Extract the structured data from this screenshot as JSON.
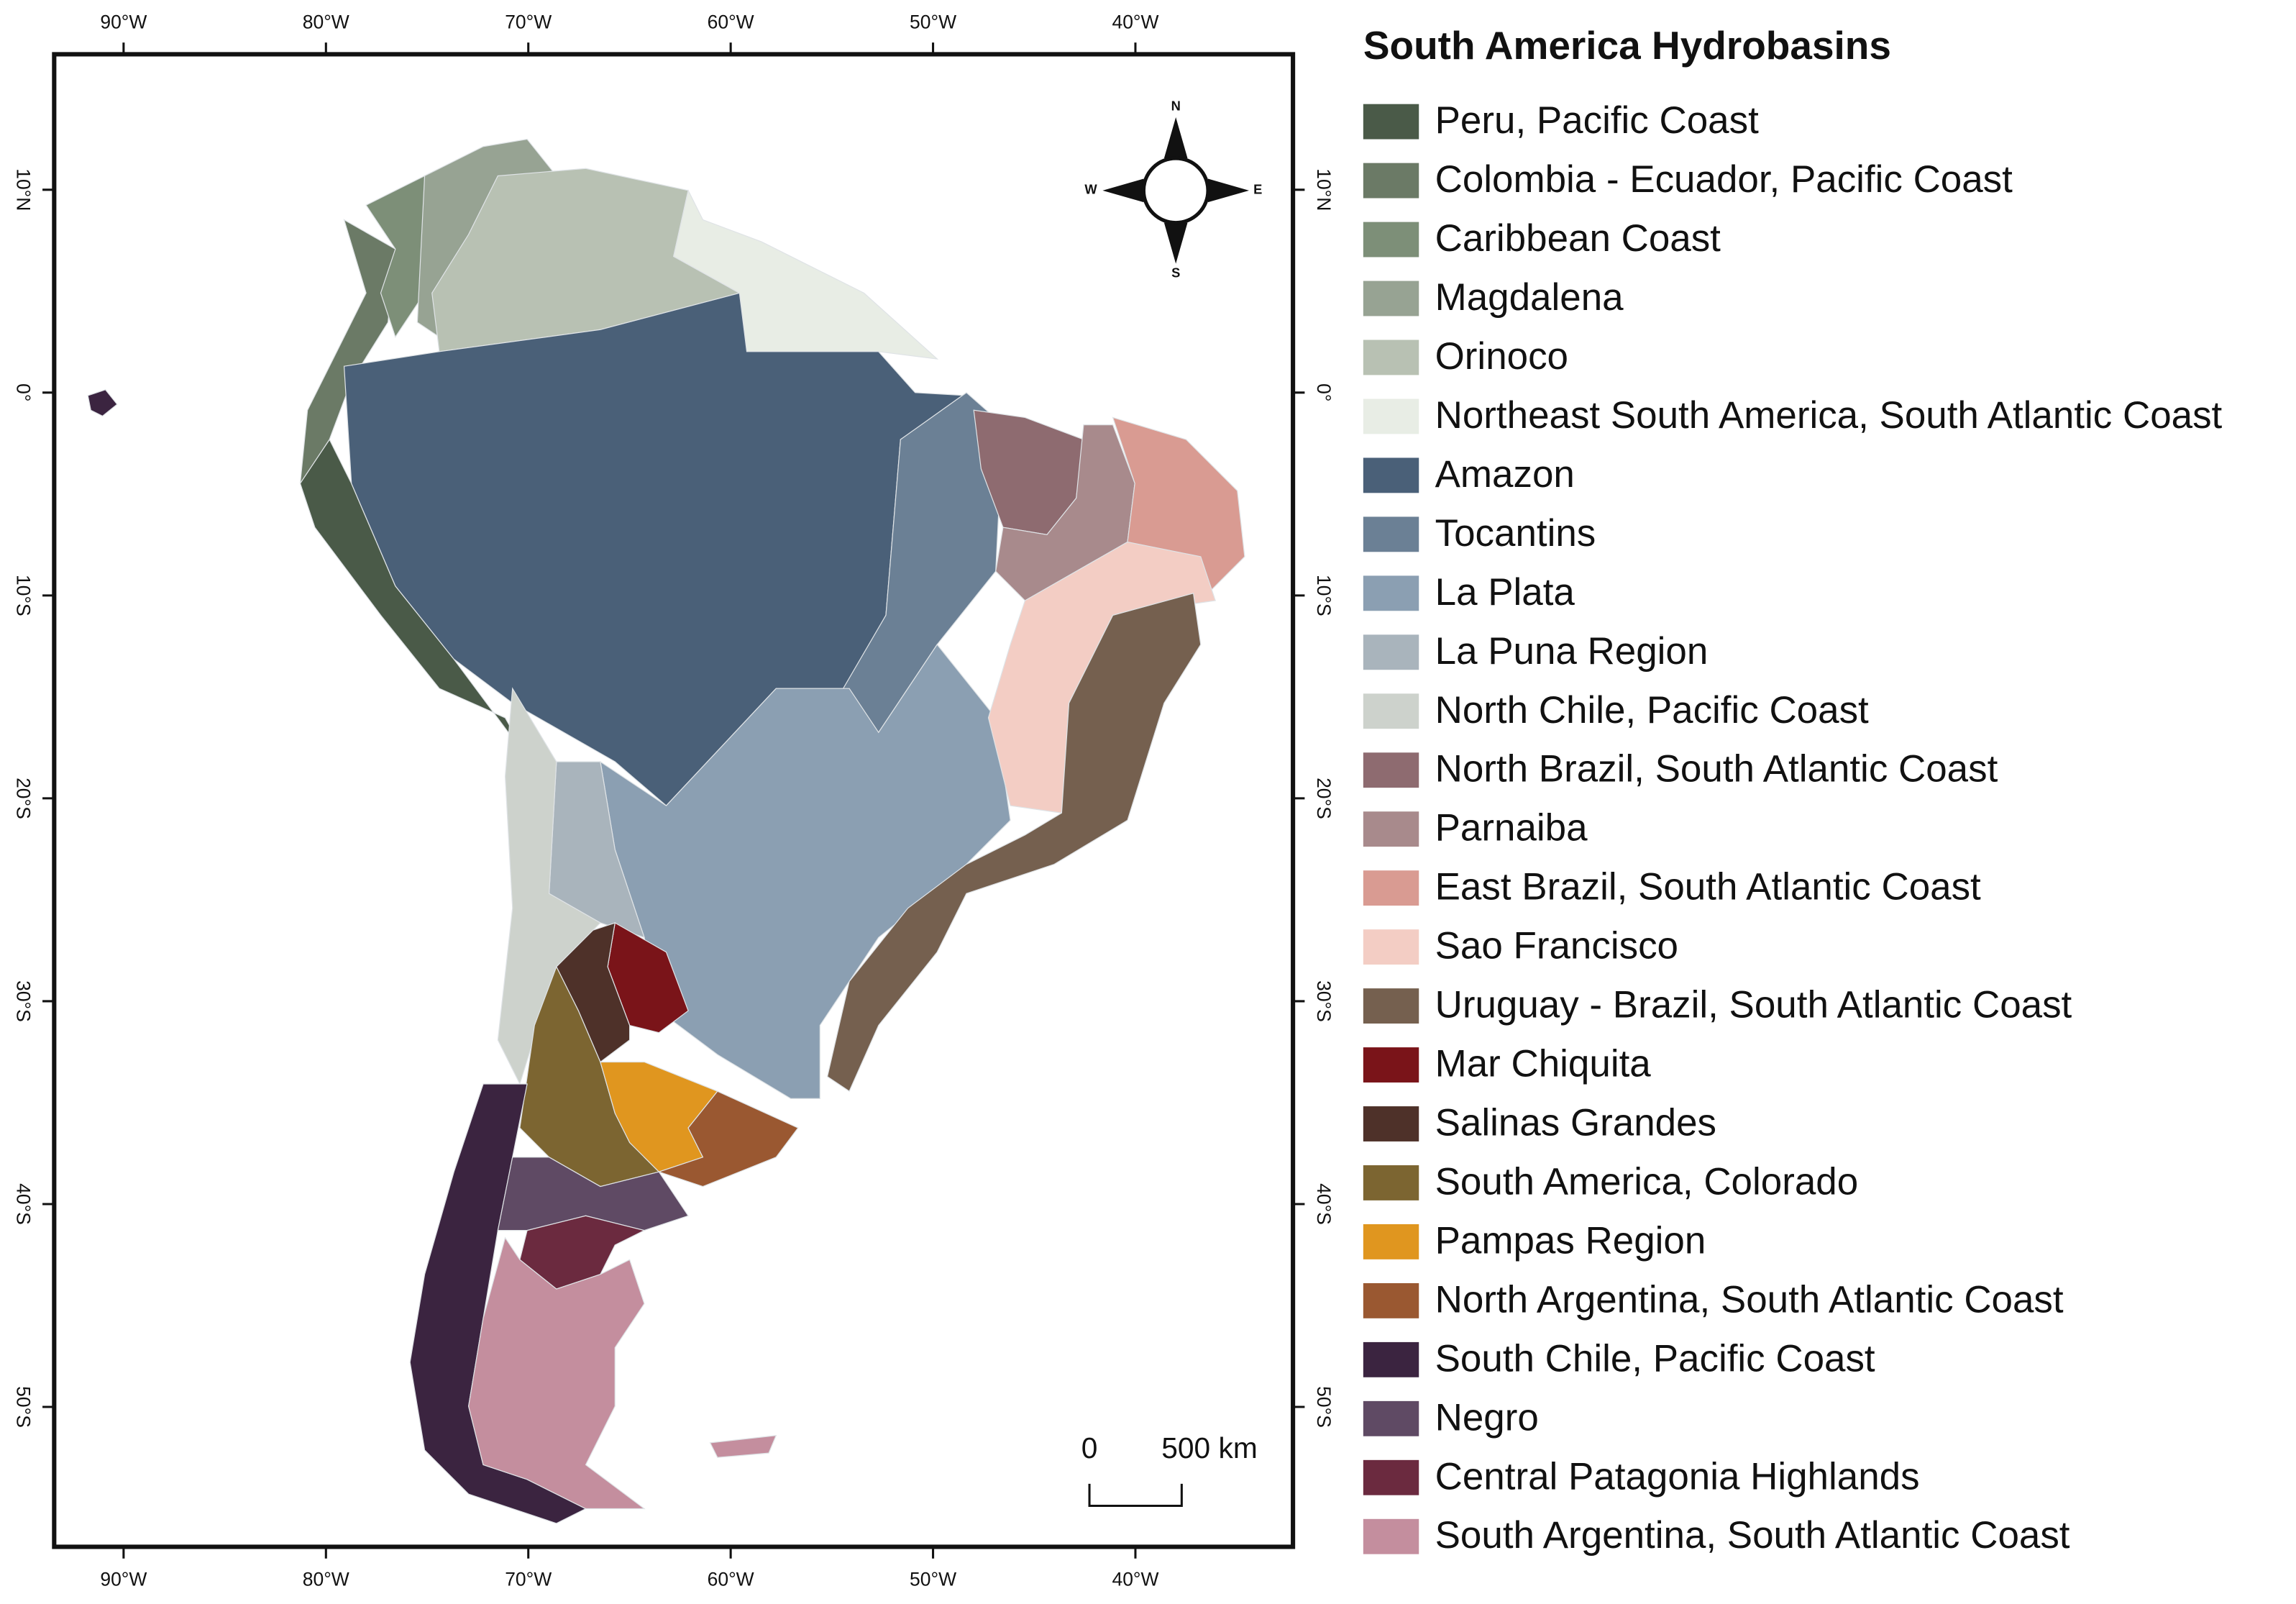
{
  "map": {
    "title": "South America Hydrobasins",
    "legend": [
      {
        "name": "Peru, Pacific Coast",
        "color": "#4a5a48"
      },
      {
        "name": "Colombia - Ecuador, Pacific Coast",
        "color": "#6b7a66"
      },
      {
        "name": "Caribbean Coast",
        "color": "#7d8f78"
      },
      {
        "name": "Magdalena",
        "color": "#97a393"
      },
      {
        "name": "Orinoco",
        "color": "#b8c1b3"
      },
      {
        "name": "Northeast South America, South Atlantic Coast",
        "color": "#e8ede5"
      },
      {
        "name": "Amazon",
        "color": "#4a6078"
      },
      {
        "name": "Tocantins",
        "color": "#6b8095"
      },
      {
        "name": "La Plata",
        "color": "#8b9fb2"
      },
      {
        "name": "La Puna Region",
        "color": "#a9b4bc"
      },
      {
        "name": "North Chile, Pacific Coast",
        "color": "#cdd2cc"
      },
      {
        "name": "North Brazil, South Atlantic Coast",
        "color": "#8e6b70"
      },
      {
        "name": "Parnaiba",
        "color": "#a88a8c"
      },
      {
        "name": "East Brazil, South Atlantic Coast",
        "color": "#d99b92"
      },
      {
        "name": "Sao Francisco",
        "color": "#f3cdc4"
      },
      {
        "name": "Uruguay - Brazil, South Atlantic Coast",
        "color": "#75604f"
      },
      {
        "name": "Mar Chiquita",
        "color": "#7a1419"
      },
      {
        "name": "Salinas Grandes",
        "color": "#4e3129"
      },
      {
        "name": "South America, Colorado",
        "color": "#7c6531"
      },
      {
        "name": "Pampas Region",
        "color": "#e0961f"
      },
      {
        "name": "North Argentina, South Atlantic Coast",
        "color": "#9a5831"
      },
      {
        "name": "South Chile, Pacific Coast",
        "color": "#3b2440"
      },
      {
        "name": "Negro",
        "color": "#5f4a64"
      },
      {
        "name": "Central Patagonia Highlands",
        "color": "#6b2a3f"
      },
      {
        "name": "South Argentina, South Atlantic Coast",
        "color": "#c48e9e"
      }
    ],
    "lon_ticks": [
      {
        "value": -90,
        "label": "90°W"
      },
      {
        "value": -80,
        "label": "80°W"
      },
      {
        "value": -70,
        "label": "70°W"
      },
      {
        "value": -60,
        "label": "60°W"
      },
      {
        "value": -50,
        "label": "50°W"
      },
      {
        "value": -40,
        "label": "40°W"
      }
    ],
    "lat_ticks": [
      {
        "value": 10,
        "label": "10°N"
      },
      {
        "value": 0,
        "label": "0°"
      },
      {
        "value": -10,
        "label": "10°S"
      },
      {
        "value": -20,
        "label": "20°S"
      },
      {
        "value": -30,
        "label": "30°S"
      },
      {
        "value": -40,
        "label": "40°S"
      },
      {
        "value": -50,
        "label": "50°S"
      }
    ],
    "compass": {
      "n": "N",
      "e": "E",
      "s": "S",
      "w": "W"
    },
    "scale_bar": {
      "start": "0",
      "end": "500 km"
    }
  }
}
